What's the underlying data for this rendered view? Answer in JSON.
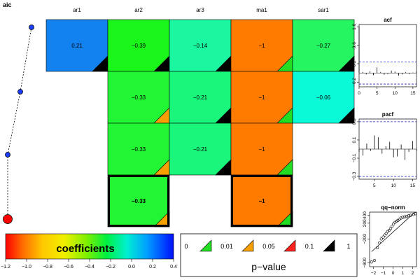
{
  "chart_data": {
    "type": "heatmap",
    "title": "aic",
    "columns": [
      "ar1",
      "ar2",
      "ar3",
      "ma1",
      "sar1"
    ],
    "rows": [
      {
        "aic_rank": 1,
        "selected": false,
        "cells": [
          {
            "col": "ar1",
            "value": 0.21,
            "label": "0.21",
            "pval_bin": "0.1-1",
            "color": "#1282f0"
          },
          {
            "col": "ar2",
            "value": -0.39,
            "label": "−0.39",
            "pval_bin": "0.1-1",
            "color": "#1af51a"
          },
          {
            "col": "ar3",
            "value": -0.14,
            "label": "−0.14",
            "pval_bin": "0.1-1",
            "color": "#1af7a0"
          },
          {
            "col": "ma1",
            "value": -1,
            "label": "−1",
            "pval_bin": "0-0.01",
            "color": "#ff7b00"
          },
          {
            "col": "sar1",
            "value": -0.27,
            "label": "−0.27",
            "pval_bin": "0.1-1",
            "color": "#26f562"
          }
        ]
      },
      {
        "aic_rank": 2,
        "selected": false,
        "cells": [
          {
            "col": "ar2",
            "value": -0.33,
            "label": "−0.33",
            "pval_bin": "0.01-0.05",
            "color": "#22f533"
          },
          {
            "col": "ar3",
            "value": -0.21,
            "label": "−0.21",
            "pval_bin": "0.1-1",
            "color": "#1af57c"
          },
          {
            "col": "ma1",
            "value": -1,
            "label": "−1",
            "pval_bin": "0-0.01",
            "color": "#ff7b00"
          },
          {
            "col": "sar1",
            "value": -0.06,
            "label": "−0.06",
            "pval_bin": "0.1-1",
            "color": "#0afad8"
          }
        ]
      },
      {
        "aic_rank": 3,
        "selected": false,
        "cells": [
          {
            "col": "ar2",
            "value": -0.33,
            "label": "−0.33",
            "pval_bin": "0.01-0.05",
            "color": "#22f533"
          },
          {
            "col": "ar3",
            "value": -0.21,
            "label": "−0.21",
            "pval_bin": "0.1-1",
            "color": "#1af57c"
          },
          {
            "col": "ma1",
            "value": -1,
            "label": "−1",
            "pval_bin": "0-0.01",
            "color": "#ff7b00"
          }
        ]
      },
      {
        "aic_rank": 4,
        "selected": true,
        "cells": [
          {
            "col": "ar2",
            "value": -0.33,
            "label": "−0.33",
            "pval_bin": "0.01-0.05",
            "color": "#22f533"
          },
          {
            "col": "ma1",
            "value": -1,
            "label": "−1",
            "pval_bin": "0-0.01",
            "color": "#ff7b00"
          }
        ]
      }
    ],
    "pvalue_colors": {
      "0-0.01": "#22dd22",
      "0.01-0.05": "#f5a000",
      "0.05-0.1": "#ff2020",
      "0.1-1": "#000000"
    },
    "colorbar": {
      "label": "coefficients",
      "ticks": [
        "−1.2",
        "−1.0",
        "−0.8",
        "−0.6",
        "−0.4",
        "−0.2",
        "0.0",
        "0.2",
        "0.4"
      ],
      "range": [
        -1.2,
        0.4
      ]
    },
    "pvalue_legend": {
      "breaks": [
        "0",
        "0.01",
        "0.05",
        "0.1",
        "1"
      ],
      "label": "p−value"
    },
    "acf": {
      "title": "acf",
      "y_ticks": [
        "−0.2",
        "0.2",
        "0.6",
        "1.0"
      ],
      "x_ticks": [
        "0",
        "5",
        "10",
        "15"
      ],
      "ylim": [
        -0.3,
        1.05
      ],
      "xlim": [
        0,
        16
      ],
      "ci": 0.24,
      "lags": [
        0,
        1,
        2,
        3,
        4,
        5,
        6,
        7,
        8,
        9,
        10,
        11,
        12,
        13,
        14,
        15,
        16
      ],
      "values": [
        1.0,
        0.02,
        -0.03,
        0.04,
        -0.05,
        0.12,
        0.02,
        -0.04,
        -0.02,
        0.05,
        0.03,
        -0.06,
        -0.03,
        0.02,
        -0.02,
        0.01,
        0.03
      ]
    },
    "pacf": {
      "title": "pacf",
      "y_ticks": [
        "−0.3",
        "−0.1",
        "0.1",
        "0.3"
      ],
      "x_ticks": [
        "5",
        "10",
        "15"
      ],
      "ylim": [
        -0.33,
        0.33
      ],
      "xlim": [
        1,
        16
      ],
      "ci": 0.3,
      "lags": [
        1,
        2,
        3,
        4,
        5,
        6,
        7,
        8,
        9,
        10,
        11,
        12,
        13,
        14,
        15,
        16
      ],
      "values": [
        -0.03,
        -0.07,
        0.06,
        -0.02,
        0.15,
        0.13,
        -0.05,
        0.03,
        0.08,
        -0.09,
        -0.08,
        0.05,
        -0.12,
        -0.03,
        0.09,
        -0.02
      ]
    },
    "qqnorm": {
      "title": "qq−norm",
      "x_ticks": [
        "−2",
        "−1",
        "0",
        "1",
        "2"
      ],
      "y_ticks": [
        "−800",
        "−200",
        "200",
        "400"
      ],
      "xlim": [
        -2.4,
        2.4
      ],
      "ylim": [
        -900,
        480
      ],
      "points": [
        [
          -2.2,
          -780
        ],
        [
          -1.9,
          -740
        ],
        [
          -1.6,
          -420
        ],
        [
          -1.4,
          -300
        ],
        [
          -1.2,
          -200
        ],
        [
          -1.0,
          -150
        ],
        [
          -0.85,
          -100
        ],
        [
          -0.7,
          -60
        ],
        [
          -0.55,
          -10
        ],
        [
          -0.4,
          20
        ],
        [
          -0.25,
          60
        ],
        [
          -0.1,
          120
        ],
        [
          0.05,
          180
        ],
        [
          0.2,
          220
        ],
        [
          0.35,
          250
        ],
        [
          0.5,
          270
        ],
        [
          0.65,
          300
        ],
        [
          0.8,
          330
        ],
        [
          1.0,
          350
        ],
        [
          1.2,
          360
        ],
        [
          1.4,
          370
        ],
        [
          1.6,
          390
        ],
        [
          1.8,
          400
        ],
        [
          2.1,
          420
        ],
        [
          2.3,
          440
        ]
      ]
    }
  }
}
